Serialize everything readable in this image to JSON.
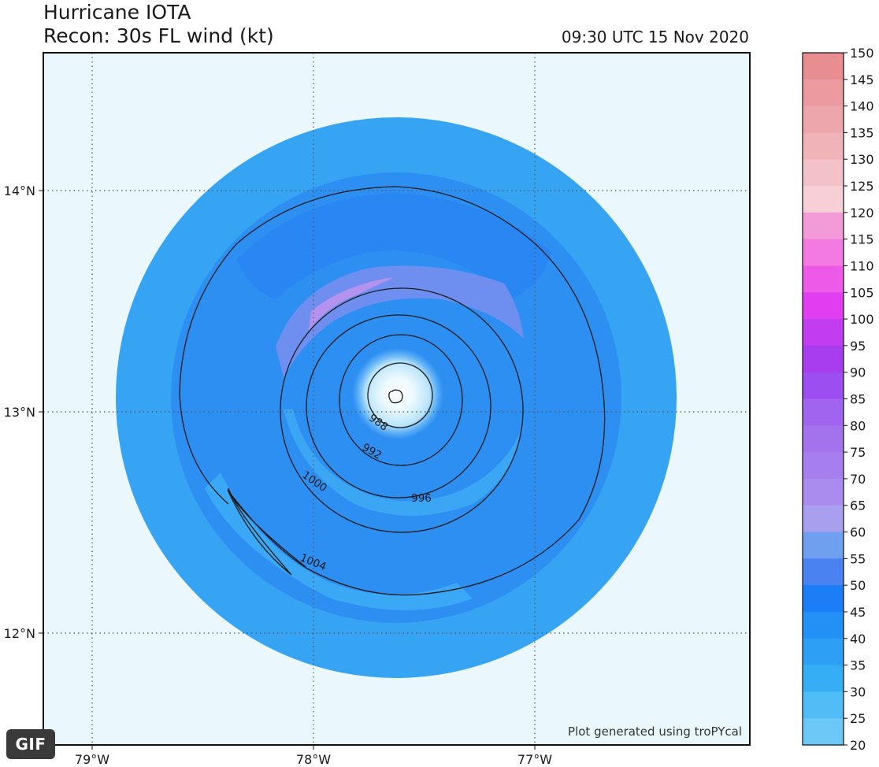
{
  "header": {
    "title_line1": "Hurricane IOTA",
    "title_line2": "Recon: 30s FL wind (kt)",
    "timestamp": "09:30 UTC 15 Nov 2020"
  },
  "map": {
    "lon_labels": [
      "79°W",
      "78°W",
      "77°W"
    ],
    "lat_labels": [
      "14°N",
      "13°N",
      "12°N"
    ],
    "gridlines": "dotted",
    "background_color": "#eaf8fd",
    "credit": "Plot generated using troPYcal"
  },
  "pressure_contours": {
    "unit": "hPa",
    "levels": [
      "988",
      "992",
      "996",
      "1000",
      "1004"
    ]
  },
  "colorbar": {
    "ticks": [
      "150",
      "145",
      "140",
      "135",
      "130",
      "125",
      "120",
      "115",
      "110",
      "105",
      "100",
      "95",
      "90",
      "85",
      "80",
      "75",
      "70",
      "65",
      "60",
      "55",
      "50",
      "45",
      "40",
      "35",
      "30",
      "25",
      "20"
    ],
    "colors": [
      "#e88e91",
      "#eb9b9f",
      "#eda6ab",
      "#f0b3b8",
      "#f3c2c8",
      "#f7cfd6",
      "#f39ad8",
      "#f27ae0",
      "#ee5ae8",
      "#e03ef0",
      "#c23cf0",
      "#a83df0",
      "#9d4ef0",
      "#a064ef",
      "#a373ee",
      "#a67eee",
      "#a98cee",
      "#a8a0ee",
      "#6ea0ef",
      "#4a82f2",
      "#1b7ef7",
      "#2390f6",
      "#2d9ff5",
      "#35aef6",
      "#50bdf7",
      "#6cc8f6",
      "#8ad6f6"
    ]
  },
  "badge": {
    "label": "GIF"
  }
}
